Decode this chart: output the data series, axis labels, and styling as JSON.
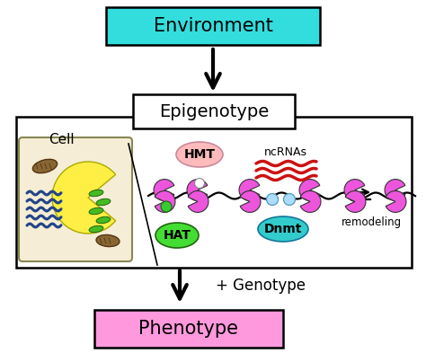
{
  "environment_box_color": "#33DDDD",
  "epigenotype_box_color": "#FFFFFF",
  "phenotype_box_color": "#FF99DD",
  "environment_text": "Environment",
  "epigenotype_text": "Epigenotype",
  "phenotype_text": "Phenotype",
  "cell_text": "Cell",
  "hmt_text": "HMT",
  "hat_text": "HAT",
  "dnmt_text": "Dnmt",
  "ncrnas_text": "ncRNAs",
  "remodeling_text": "remodeling",
  "genotype_text": "+ Genotype",
  "histone_color": "#EE55DD",
  "hmt_ellipse_color": "#FFBBBB",
  "hat_ellipse_color": "#44DD33",
  "dnmt_ellipse_color": "#33CCCC",
  "small_circle_color": "#AADDFF",
  "green_small_circle": "#33CC33",
  "ncRNA_color": "#CC1111",
  "background": "#FFFFFF",
  "outer_box_color": "#000000",
  "cell_fill": "#F5EDD5",
  "nucleus_color": "#FFEE44",
  "mito_color": "#886633",
  "er_color": "#224488",
  "chloro_color": "#44BB22"
}
